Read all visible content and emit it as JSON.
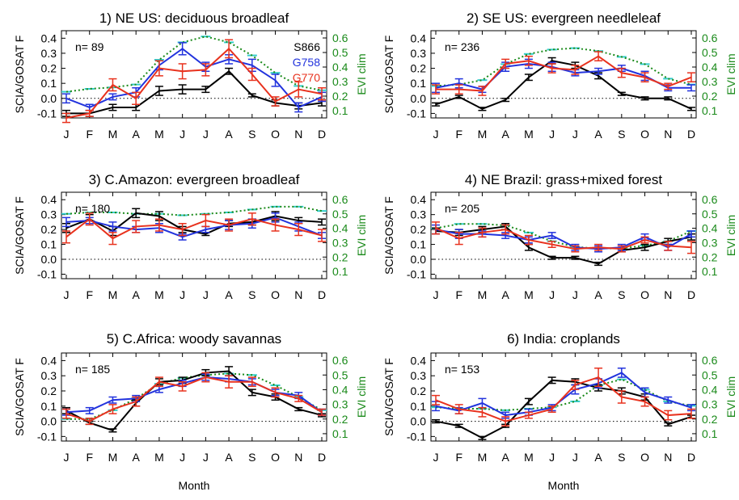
{
  "colors": {
    "S866": "#000000",
    "G758": "#2233dd",
    "G770": "#e8321e",
    "evi_dotted": "#1a8a1a",
    "evi_cyan": "#33cccc",
    "evi_axis": "#1a8a1a"
  },
  "shared": {
    "months": [
      "J",
      "F",
      "M",
      "A",
      "M",
      "J",
      "J",
      "A",
      "S",
      "O",
      "N",
      "D"
    ],
    "ylabel_left": "SCIA/GOSAT F",
    "ylabel_right": "EVI clim",
    "xlabel": "Month",
    "left_ticks": [
      "0.4",
      "0.3",
      "0.2",
      "0.1",
      "0.0",
      "-0.1"
    ],
    "right_ticks": [
      "0.6",
      "0.5",
      "0.4",
      "0.3",
      "0.2",
      "0.1"
    ],
    "legend": [
      "S866",
      "G758",
      "G770"
    ]
  },
  "chart_data": [
    {
      "type": "line",
      "title": "1) NE US: deciduous broadleaf",
      "n_label": "n= 89",
      "ylim": [
        -0.13,
        0.45
      ],
      "evi_ylim": [
        0.05,
        0.65
      ],
      "series": [
        {
          "name": "S866",
          "values": [
            -0.1,
            -0.1,
            -0.06,
            -0.06,
            0.05,
            0.06,
            0.06,
            0.18,
            0.02,
            -0.03,
            -0.05,
            -0.03
          ],
          "errors": [
            0.02,
            0.02,
            0.02,
            0.02,
            0.03,
            0.03,
            0.02,
            0.02,
            0.01,
            0.02,
            0.02,
            0.02
          ]
        },
        {
          "name": "G758",
          "values": [
            0.0,
            -0.06,
            0.01,
            0.04,
            0.22,
            0.33,
            0.21,
            0.26,
            0.22,
            0.12,
            -0.06,
            0.01
          ],
          "errors": [
            0.03,
            0.02,
            0.02,
            0.03,
            0.03,
            0.04,
            0.03,
            0.03,
            0.04,
            0.04,
            0.03,
            0.03
          ]
        },
        {
          "name": "G770",
          "values": [
            -0.13,
            -0.1,
            0.09,
            0.0,
            0.2,
            0.18,
            0.19,
            0.33,
            0.16,
            -0.02,
            0.06,
            0.03
          ],
          "errors": [
            0.03,
            0.02,
            0.04,
            0.04,
            0.05,
            0.05,
            0.04,
            0.06,
            0.04,
            0.03,
            0.05,
            0.04
          ]
        }
      ],
      "evi": [
        0.23,
        0.25,
        0.26,
        0.28,
        0.45,
        0.57,
        0.61,
        0.57,
        0.48,
        0.36,
        0.27,
        0.24
      ]
    },
    {
      "type": "line",
      "title": "2) SE US: evergreen needleleaf",
      "n_label": "n= 236",
      "ylim": [
        -0.13,
        0.45
      ],
      "evi_ylim": [
        0.05,
        0.65
      ],
      "series": [
        {
          "name": "S866",
          "values": [
            -0.04,
            0.01,
            -0.07,
            -0.01,
            0.14,
            0.25,
            0.22,
            0.15,
            0.03,
            0.0,
            0.0,
            -0.07
          ],
          "errors": [
            0.01,
            0.01,
            0.01,
            0.01,
            0.02,
            0.02,
            0.02,
            0.02,
            0.01,
            0.01,
            0.01,
            0.01
          ]
        },
        {
          "name": "G758",
          "values": [
            0.07,
            0.1,
            0.06,
            0.21,
            0.23,
            0.21,
            0.17,
            0.18,
            0.2,
            0.15,
            0.07,
            0.07
          ],
          "errors": [
            0.03,
            0.03,
            0.02,
            0.03,
            0.03,
            0.03,
            0.02,
            0.02,
            0.02,
            0.03,
            0.02,
            0.02
          ]
        },
        {
          "name": "G770",
          "values": [
            0.06,
            0.06,
            0.05,
            0.23,
            0.25,
            0.2,
            0.19,
            0.28,
            0.17,
            0.14,
            0.08,
            0.14
          ],
          "errors": [
            0.03,
            0.03,
            0.03,
            0.03,
            0.03,
            0.03,
            0.03,
            0.03,
            0.03,
            0.03,
            0.02,
            0.03
          ]
        }
      ],
      "evi": [
        0.27,
        0.28,
        0.31,
        0.42,
        0.49,
        0.52,
        0.53,
        0.51,
        0.47,
        0.42,
        0.32,
        0.28
      ]
    },
    {
      "type": "line",
      "title": "3) C.Amazon: evergreen broadleaf",
      "n_label": "n= 180",
      "ylim": [
        -0.13,
        0.45
      ],
      "evi_ylim": [
        0.05,
        0.65
      ],
      "series": [
        {
          "name": "S866",
          "values": [
            0.21,
            0.27,
            0.19,
            0.31,
            0.29,
            0.2,
            0.17,
            0.24,
            0.25,
            0.29,
            0.26,
            0.25
          ],
          "errors": [
            0.03,
            0.03,
            0.03,
            0.03,
            0.03,
            0.02,
            0.01,
            0.02,
            0.02,
            0.03,
            0.02,
            0.02
          ]
        },
        {
          "name": "G758",
          "values": [
            0.25,
            0.26,
            0.22,
            0.2,
            0.21,
            0.15,
            0.2,
            0.23,
            0.24,
            0.28,
            0.22,
            0.16
          ],
          "errors": [
            0.03,
            0.02,
            0.03,
            0.02,
            0.03,
            0.02,
            0.02,
            0.03,
            0.03,
            0.03,
            0.03,
            0.02
          ]
        },
        {
          "name": "G770",
          "values": [
            0.15,
            0.27,
            0.14,
            0.22,
            0.23,
            0.2,
            0.26,
            0.23,
            0.27,
            0.23,
            0.2,
            0.16
          ],
          "errors": [
            0.04,
            0.04,
            0.04,
            0.04,
            0.04,
            0.04,
            0.04,
            0.04,
            0.04,
            0.04,
            0.04,
            0.04
          ]
        }
      ],
      "evi": [
        0.5,
        0.51,
        0.51,
        0.5,
        0.5,
        0.49,
        0.5,
        0.51,
        0.53,
        0.55,
        0.55,
        0.52
      ]
    },
    {
      "type": "line",
      "title": "4) NE Brazil: grass+mixed forest",
      "n_label": "n= 205",
      "ylim": [
        -0.13,
        0.45
      ],
      "evi_ylim": [
        0.05,
        0.65
      ],
      "series": [
        {
          "name": "S866",
          "values": [
            0.19,
            0.18,
            0.2,
            0.22,
            0.08,
            0.01,
            0.01,
            -0.03,
            0.06,
            0.08,
            0.12,
            0.15
          ],
          "errors": [
            0.02,
            0.02,
            0.02,
            0.02,
            0.02,
            0.01,
            0.01,
            0.01,
            0.01,
            0.02,
            0.02,
            0.02
          ]
        },
        {
          "name": "G758",
          "values": [
            0.2,
            0.17,
            0.17,
            0.16,
            0.13,
            0.16,
            0.08,
            0.07,
            0.08,
            0.15,
            0.08,
            0.17
          ],
          "errors": [
            0.03,
            0.03,
            0.02,
            0.02,
            0.02,
            0.02,
            0.02,
            0.02,
            0.02,
            0.02,
            0.02,
            0.02
          ]
        },
        {
          "name": "G770",
          "values": [
            0.21,
            0.14,
            0.18,
            0.2,
            0.13,
            0.1,
            0.07,
            0.08,
            0.07,
            0.13,
            0.09,
            0.08
          ],
          "errors": [
            0.04,
            0.04,
            0.03,
            0.03,
            0.03,
            0.02,
            0.02,
            0.02,
            0.02,
            0.02,
            0.03,
            0.04
          ]
        }
      ],
      "evi": [
        0.4,
        0.43,
        0.43,
        0.42,
        0.37,
        0.31,
        0.27,
        0.26,
        0.26,
        0.28,
        0.31,
        0.38
      ]
    },
    {
      "type": "line",
      "title": "5) C.Africa: woody savannas",
      "n_label": "n= 185",
      "ylim": [
        -0.13,
        0.45
      ],
      "evi_ylim": [
        0.05,
        0.65
      ],
      "series": [
        {
          "name": "S866",
          "values": [
            0.07,
            -0.01,
            -0.06,
            0.12,
            0.26,
            0.27,
            0.32,
            0.33,
            0.19,
            0.16,
            0.08,
            0.04
          ],
          "errors": [
            0.02,
            0.01,
            0.01,
            0.02,
            0.02,
            0.02,
            0.02,
            0.03,
            0.02,
            0.02,
            0.01,
            0.01
          ]
        },
        {
          "name": "G758",
          "values": [
            0.06,
            0.07,
            0.14,
            0.15,
            0.21,
            0.25,
            0.29,
            0.28,
            0.26,
            0.19,
            0.17,
            0.06
          ],
          "errors": [
            0.02,
            0.02,
            0.02,
            0.02,
            0.02,
            0.02,
            0.02,
            0.02,
            0.02,
            0.02,
            0.02,
            0.02
          ]
        },
        {
          "name": "G770",
          "values": [
            0.05,
            0.0,
            0.08,
            0.13,
            0.26,
            0.23,
            0.29,
            0.26,
            0.26,
            0.19,
            0.15,
            0.06
          ],
          "errors": [
            0.03,
            0.02,
            0.03,
            0.03,
            0.03,
            0.03,
            0.03,
            0.04,
            0.03,
            0.03,
            0.02,
            0.02
          ]
        }
      ],
      "evi": [
        0.2,
        0.2,
        0.26,
        0.34,
        0.44,
        0.48,
        0.5,
        0.51,
        0.5,
        0.43,
        0.35,
        0.26
      ]
    },
    {
      "type": "line",
      "title": "6) India: croplands",
      "n_label": "n= 153",
      "ylim": [
        -0.13,
        0.45
      ],
      "evi_ylim": [
        0.05,
        0.65
      ],
      "series": [
        {
          "name": "S866",
          "values": [
            0.0,
            -0.03,
            -0.11,
            -0.03,
            0.13,
            0.27,
            0.26,
            0.22,
            0.2,
            0.16,
            -0.02,
            0.03
          ],
          "errors": [
            0.01,
            0.01,
            0.01,
            0.01,
            0.02,
            0.02,
            0.02,
            0.02,
            0.02,
            0.02,
            0.01,
            0.01
          ]
        },
        {
          "name": "G758",
          "values": [
            0.1,
            0.07,
            0.12,
            0.04,
            0.06,
            0.09,
            0.21,
            0.25,
            0.32,
            0.19,
            0.14,
            0.09
          ],
          "errors": [
            0.03,
            0.02,
            0.03,
            0.02,
            0.02,
            0.02,
            0.03,
            0.03,
            0.03,
            0.03,
            0.02,
            0.02
          ]
        },
        {
          "name": "G770",
          "values": [
            0.14,
            0.08,
            0.06,
            0.0,
            0.04,
            0.08,
            0.24,
            0.29,
            0.16,
            0.13,
            0.04,
            0.05
          ],
          "errors": [
            0.03,
            0.03,
            0.03,
            0.03,
            0.02,
            0.02,
            0.03,
            0.06,
            0.04,
            0.03,
            0.03,
            0.03
          ]
        }
      ],
      "evi": [
        0.28,
        0.27,
        0.27,
        0.26,
        0.27,
        0.28,
        0.32,
        0.43,
        0.47,
        0.4,
        0.32,
        0.29
      ]
    }
  ]
}
